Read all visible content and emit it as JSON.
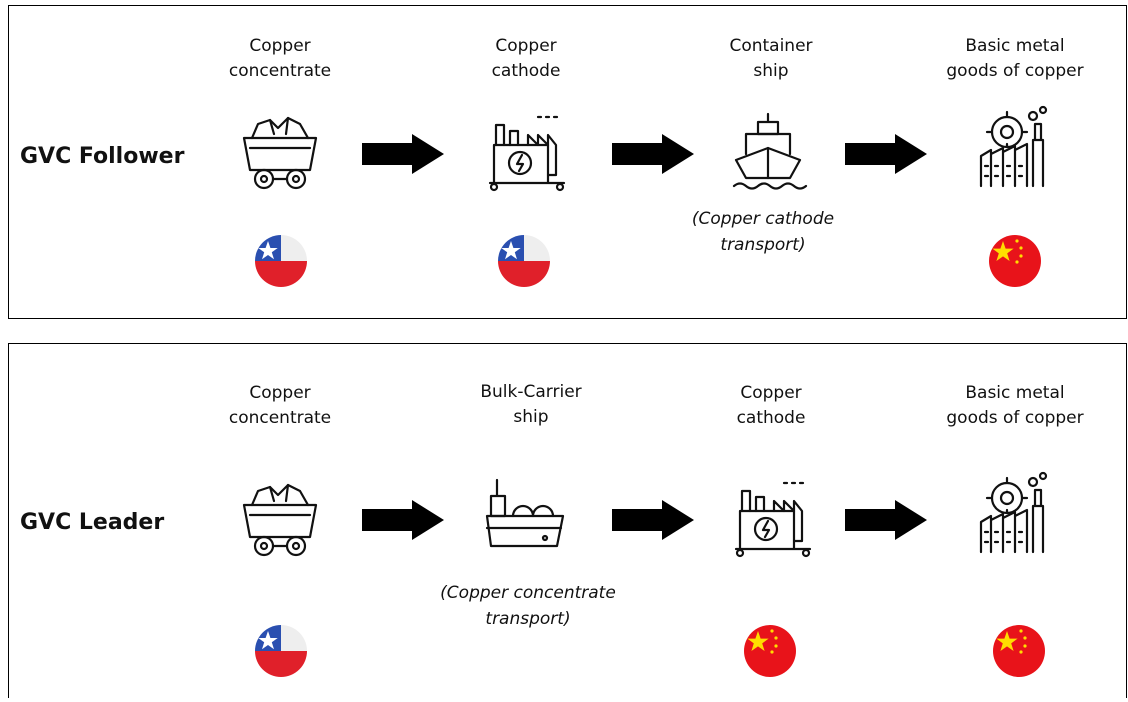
{
  "panels": [
    {
      "title": "GVC Follower",
      "steps": [
        {
          "label": [
            "Copper",
            "concentrate"
          ]
        },
        {
          "label": [
            "Copper",
            "cathode"
          ]
        },
        {
          "label": [
            "Container",
            "ship"
          ],
          "note": [
            "(Copper cathode",
            "transport)"
          ]
        },
        {
          "label": [
            "Basic metal",
            "goods of copper"
          ]
        }
      ]
    },
    {
      "title": "GVC Leader",
      "steps": [
        {
          "label": [
            "Copper",
            "concentrate"
          ]
        },
        {
          "label": [
            "Bulk-Carrier",
            "ship"
          ],
          "note": [
            "(Copper concentrate",
            "transport)"
          ]
        },
        {
          "label": [
            "Copper",
            "cathode"
          ]
        },
        {
          "label": [
            "Basic metal",
            "goods of copper"
          ]
        }
      ]
    }
  ]
}
